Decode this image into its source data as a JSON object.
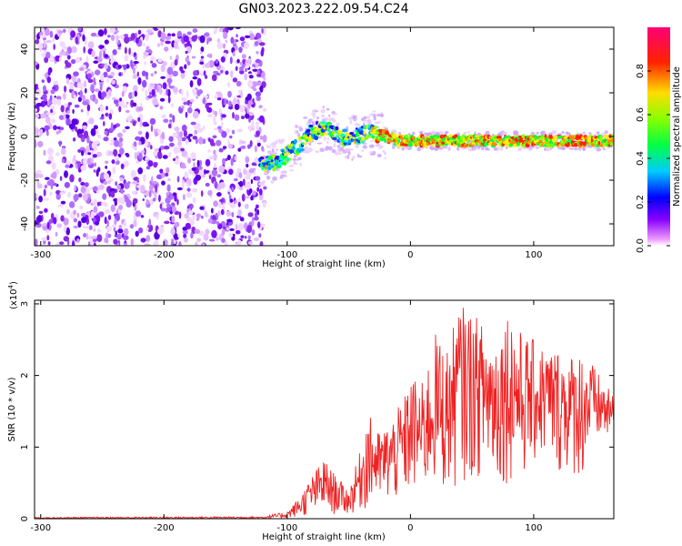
{
  "title": "GN03.2023.222.09.54.C24",
  "colors": {
    "snr_line": "#ee2222",
    "colorbar_stops": [
      "#ee88ff",
      "#8800ff",
      "#0000ff",
      "#00ccff",
      "#00ff66",
      "#88ff00",
      "#ffcc00",
      "#ff2200",
      "#ff0066"
    ]
  },
  "chart_data": [
    {
      "type": "heatmap",
      "name": "spectrogram",
      "xlabel": "Height of straight line (km)",
      "ylabel": "Frequency (Hz)",
      "xlim": [
        -305,
        165
      ],
      "ylim": [
        -50,
        50
      ],
      "xticks": [
        -300,
        -200,
        -100,
        0,
        100
      ],
      "yticks": [
        -40,
        -20,
        0,
        20,
        40
      ],
      "noise_region_x": [
        -305,
        -118
      ],
      "signal_track": {
        "x": [
          -120,
          -110,
          -100,
          -90,
          -80,
          -70,
          -60,
          -50,
          -40,
          -30,
          -20,
          -10,
          0,
          40,
          80,
          120,
          165
        ],
        "freq": [
          -13,
          -12,
          -8,
          -4,
          2,
          4,
          2,
          -2,
          1,
          2,
          0,
          -2,
          -2,
          -2,
          -2,
          -2,
          -2
        ]
      },
      "colorbar": {
        "label": "Normalized spectral amplitude",
        "range": [
          0.0,
          1.0
        ],
        "ticks": [
          "0.0",
          "0.2",
          "0.4",
          "0.6",
          "0.8"
        ]
      }
    },
    {
      "type": "line",
      "name": "snr",
      "xlabel": "Height of straight line (km)",
      "ylabel": "SNR (10 * v/v)",
      "y_multiplier_label": "(x10",
      "y_multiplier_exp": "4",
      "xlim": [
        -305,
        165
      ],
      "ylim": [
        0,
        3.05
      ],
      "xticks": [
        -300,
        -200,
        -100,
        0,
        100
      ],
      "yticks": [
        0,
        1,
        2,
        3
      ],
      "envelope": {
        "x": [
          -305,
          -120,
          -100,
          -90,
          -80,
          -70,
          -65,
          -60,
          -55,
          -50,
          -40,
          -35,
          -25,
          -15,
          -5,
          0,
          10,
          20,
          30,
          40,
          50,
          60,
          70,
          80,
          90,
          100,
          110,
          120,
          130,
          140,
          150,
          165
        ],
        "upper": [
          0.02,
          0.03,
          0.1,
          0.3,
          0.6,
          0.85,
          0.7,
          0.6,
          0.5,
          0.4,
          1.0,
          1.5,
          1.2,
          1.4,
          1.7,
          2.0,
          1.9,
          2.6,
          2.4,
          3.0,
          2.9,
          2.7,
          2.6,
          3.0,
          2.6,
          2.5,
          2.4,
          2.4,
          2.3,
          2.4,
          2.1,
          1.7
        ],
        "lower": [
          0.0,
          0.0,
          0.0,
          0.02,
          0.05,
          0.05,
          0.05,
          0.05,
          0.05,
          0.05,
          0.1,
          0.1,
          0.2,
          0.2,
          0.2,
          0.3,
          0.3,
          0.4,
          0.3,
          0.5,
          0.5,
          0.6,
          0.4,
          0.5,
          0.5,
          0.7,
          0.8,
          0.6,
          0.6,
          0.5,
          1.0,
          1.1
        ]
      }
    }
  ]
}
